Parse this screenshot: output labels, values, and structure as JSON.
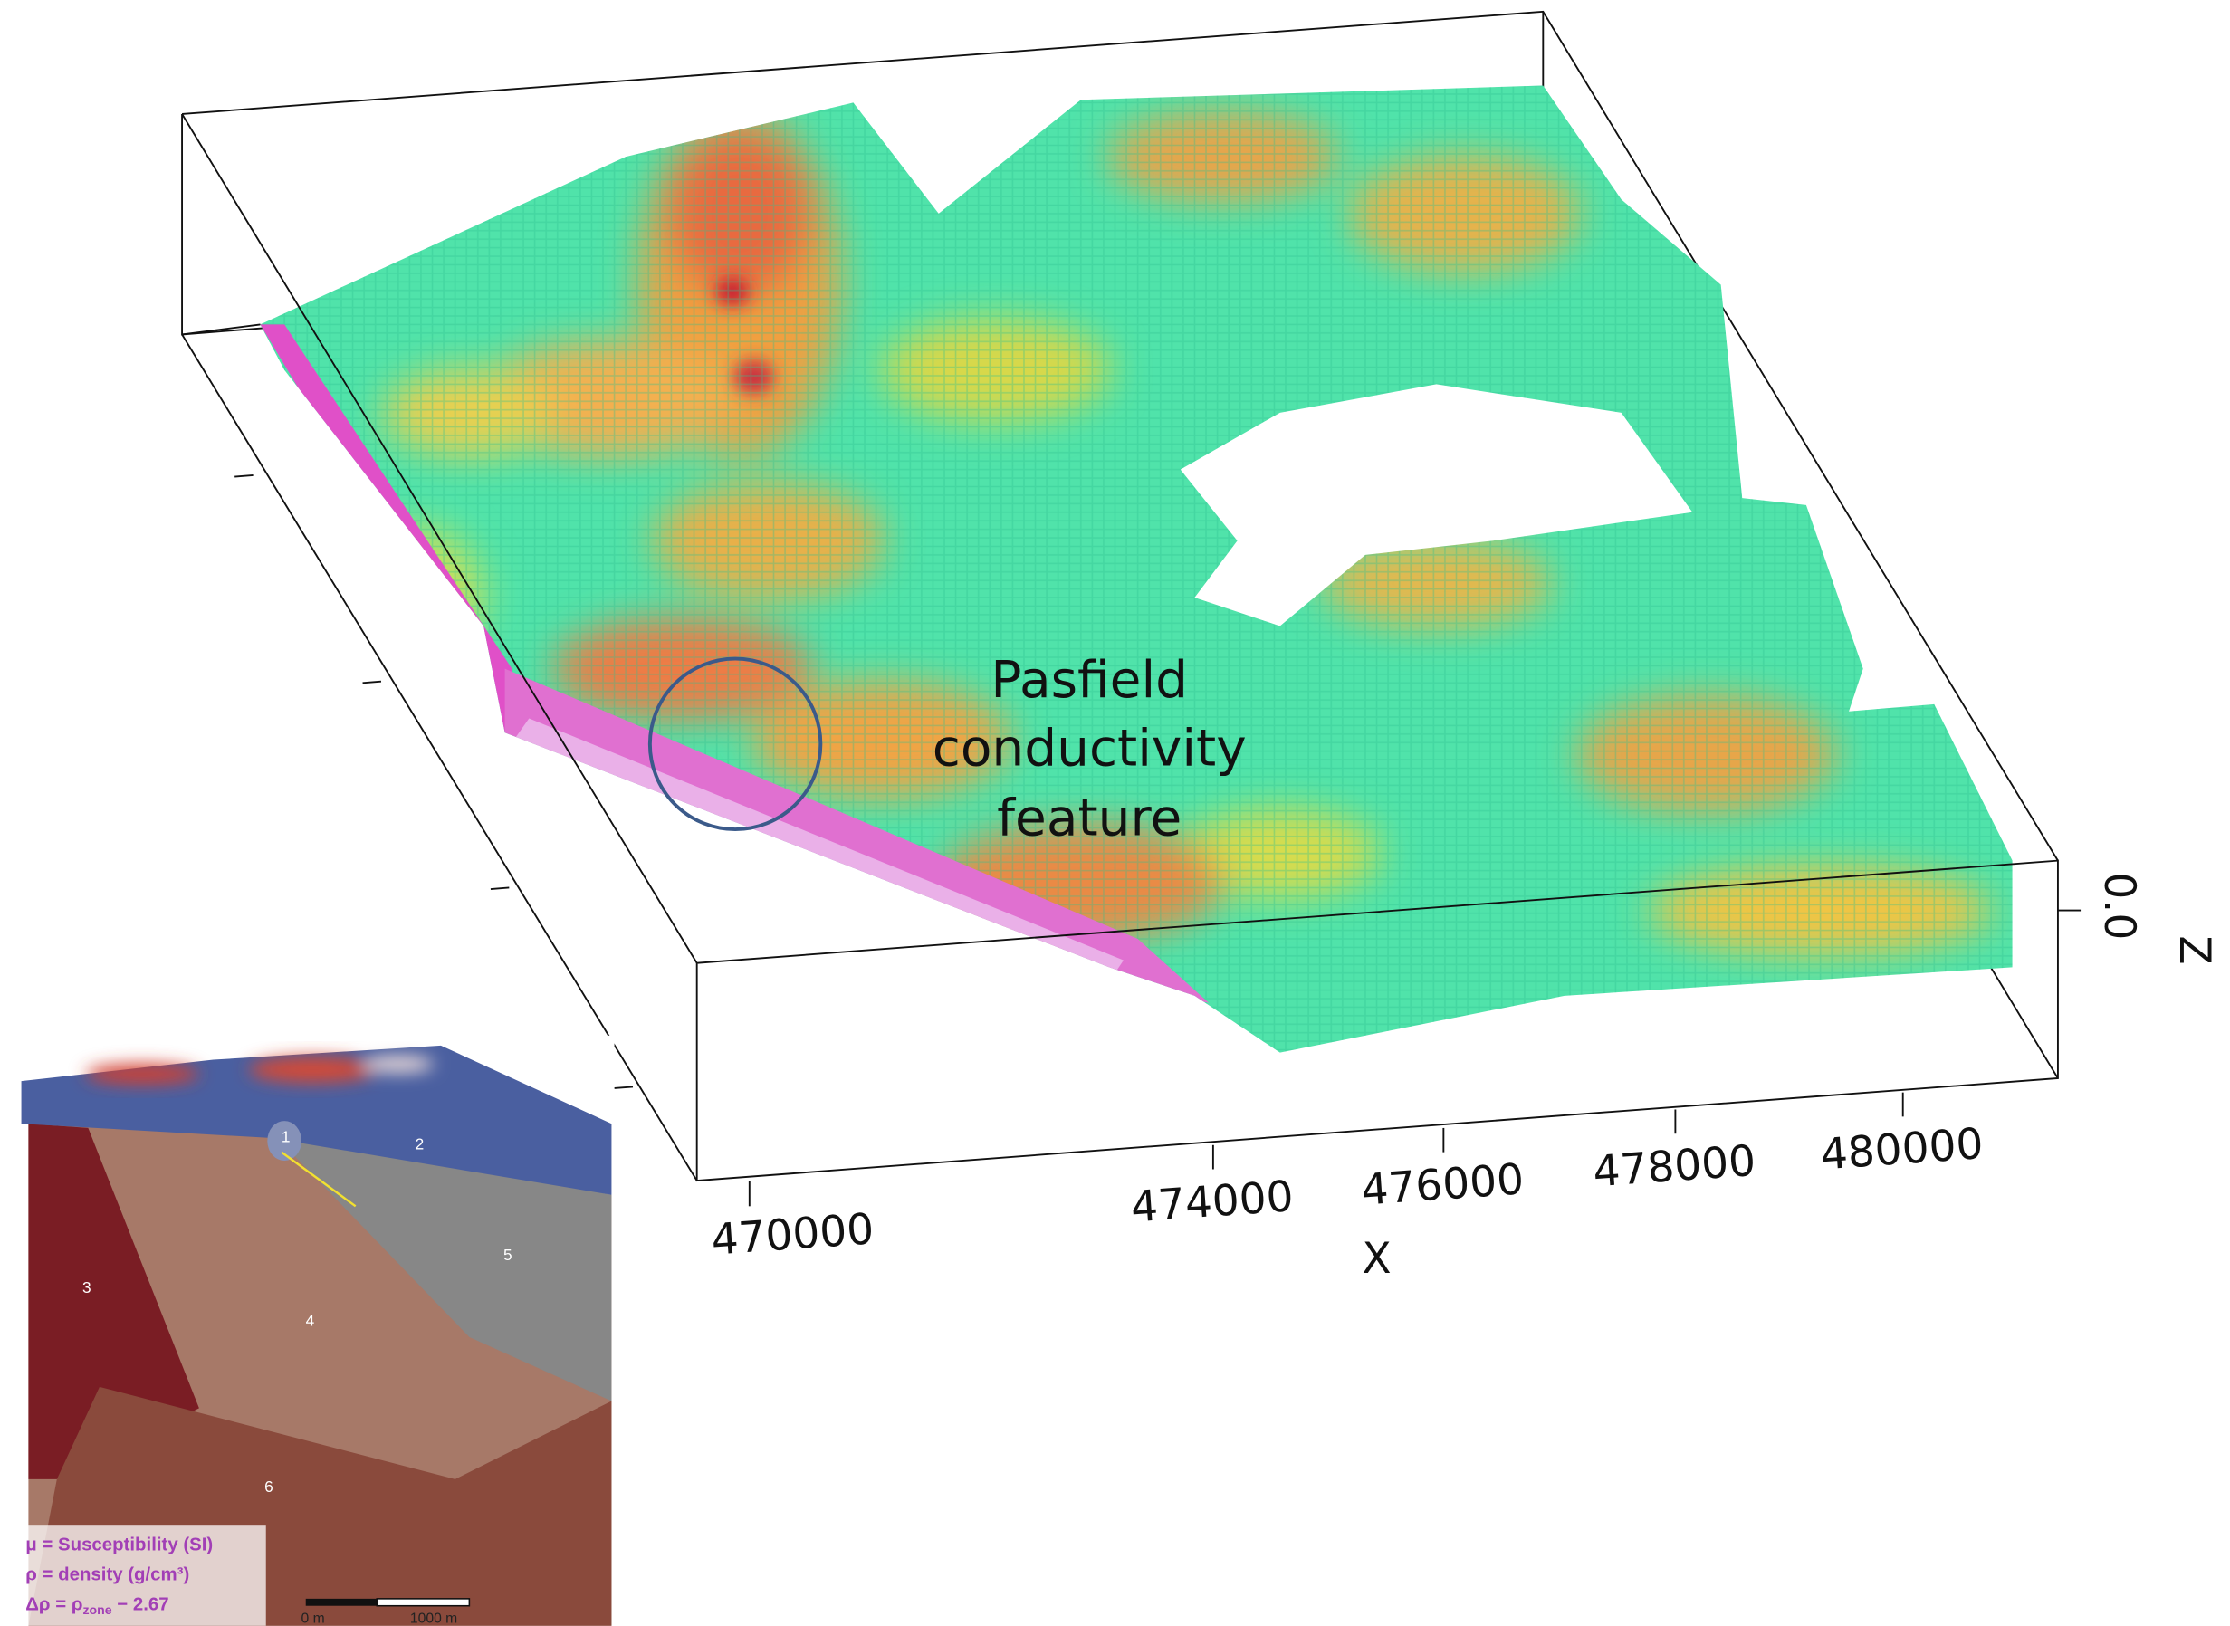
{
  "annotation": {
    "lines": [
      "Pasfield",
      "conductivity",
      "feature"
    ]
  },
  "axes": {
    "x": {
      "label": "X",
      "ticks": [
        "470000",
        "474000",
        "476000",
        "478000",
        "480000"
      ]
    },
    "z": {
      "label": "Z",
      "ticks": [
        "0.0"
      ]
    }
  },
  "inset": {
    "zones": [
      "1",
      "2",
      "3",
      "4",
      "5",
      "6"
    ],
    "legend": [
      "μ = Susceptibility (SI)",
      "ρ  = density (g/cm³)",
      {
        "prefix": "Δρ = ρ",
        "sub": "zone",
        "suffix": " − 2.67"
      }
    ],
    "scale": [
      "0 m",
      "1000 m"
    ]
  }
}
